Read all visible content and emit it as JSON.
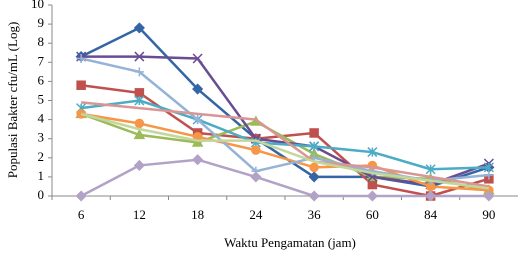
{
  "chart_data": {
    "type": "line",
    "x_label": "Waktu Pengamatan (jam)",
    "y_label": "Populasi Bakter cfu/mL (Log)",
    "categories": [
      "6",
      "12",
      "18",
      "24",
      "36",
      "60",
      "84",
      "90"
    ],
    "ylim": [
      0,
      10
    ],
    "yticks": [
      0,
      1,
      2,
      3,
      4,
      5,
      6,
      7,
      8,
      9,
      10
    ],
    "series": [
      {
        "color": "#3465a4",
        "marker": "diamond",
        "values": [
          7.3,
          8.8,
          5.6,
          3.0,
          1.0,
          1.0,
          0.5,
          1.5
        ]
      },
      {
        "color": "#c0504d",
        "marker": "square",
        "values": [
          5.8,
          5.4,
          3.3,
          3.0,
          3.3,
          0.6,
          0,
          0.9
        ]
      },
      {
        "color": "#9bbb59",
        "marker": "triangle",
        "values": [
          4.3,
          3.2,
          2.8,
          3.9,
          2.2,
          1.0,
          0.9,
          0.3
        ]
      },
      {
        "color": "#6a4c93",
        "marker": "x",
        "values": [
          7.3,
          7.3,
          7.2,
          3.0,
          2.6,
          1.0,
          0.6,
          1.7
        ]
      },
      {
        "color": "#4bacc6",
        "marker": "star",
        "values": [
          4.6,
          5.0,
          4.0,
          2.8,
          2.6,
          2.3,
          1.4,
          1.5
        ]
      },
      {
        "color": "#f79646",
        "marker": "circle",
        "values": [
          4.3,
          3.8,
          3.1,
          2.4,
          1.5,
          1.6,
          0.5,
          0.3
        ]
      },
      {
        "color": "#95b3d7",
        "marker": "plus",
        "values": [
          7.2,
          6.5,
          4.0,
          1.3,
          2.0,
          1.3,
          0.8,
          1.1
        ]
      },
      {
        "color": "#d99694",
        "marker": "none",
        "values": [
          4.9,
          4.6,
          4.3,
          4.0,
          1.8,
          1.5,
          1.0,
          0.5
        ]
      },
      {
        "color": "#b3a2c7",
        "marker": "diamond",
        "values": [
          0,
          1.6,
          1.9,
          1.0,
          0,
          0,
          0,
          0
        ]
      },
      {
        "color": "#c3d69b",
        "marker": "none",
        "values": [
          4.3,
          3.5,
          2.9,
          2.9,
          1.8,
          1.2,
          0.8,
          0.4
        ]
      }
    ]
  }
}
